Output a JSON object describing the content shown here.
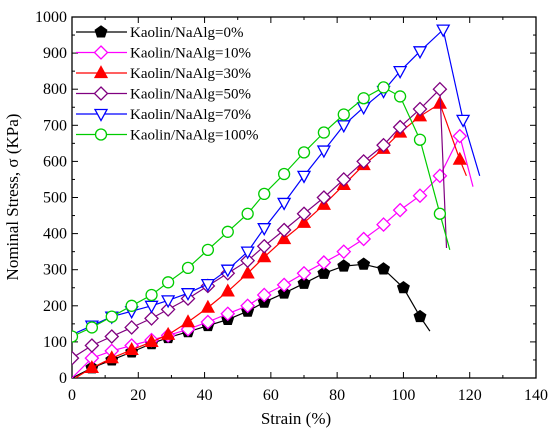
{
  "chart_data": {
    "type": "line",
    "xlabel": "Strain (%)",
    "ylabel": "Nominal Stress, σ (KPa)",
    "xlim": [
      0,
      140
    ],
    "ylim": [
      0,
      1000
    ],
    "xticks": [
      0,
      20,
      40,
      60,
      80,
      100,
      120,
      140
    ],
    "yticks": [
      0,
      100,
      200,
      300,
      400,
      500,
      600,
      700,
      800,
      900,
      1000
    ],
    "legend_position": "top-left",
    "grid": false,
    "series": [
      {
        "name": "Kaolin/NaAlg=0%",
        "color": "#000000",
        "marker": "pentagon",
        "filled": true,
        "x": [
          0,
          6,
          12,
          18,
          24,
          29,
          35,
          41,
          47,
          53,
          58,
          64,
          70,
          76,
          82,
          88,
          94,
          100,
          105,
          108
        ],
        "y": [
          0,
          28,
          50,
          72,
          95,
          112,
          128,
          145,
          162,
          185,
          210,
          235,
          262,
          290,
          310,
          315,
          302,
          250,
          170,
          130
        ],
        "marker_x": [
          6,
          12,
          18,
          24,
          29,
          35,
          41,
          47,
          53,
          58,
          64,
          70,
          76,
          82,
          88,
          94,
          100,
          105
        ],
        "marker_y": [
          28,
          50,
          72,
          95,
          112,
          128,
          145,
          162,
          185,
          210,
          235,
          262,
          290,
          310,
          315,
          302,
          250,
          170
        ]
      },
      {
        "name": "Kaolin/NaAlg=10%",
        "color": "#ff00ff",
        "marker": "diamond",
        "filled": false,
        "x": [
          0,
          6,
          12,
          18,
          24,
          29,
          35,
          41,
          47,
          53,
          58,
          64,
          70,
          76,
          82,
          88,
          94,
          99,
          105,
          111,
          117,
          121
        ],
        "y": [
          0,
          55,
          75,
          90,
          105,
          118,
          135,
          155,
          178,
          200,
          230,
          258,
          290,
          320,
          350,
          385,
          425,
          465,
          505,
          560,
          670,
          530
        ],
        "marker_x": [
          6,
          12,
          18,
          24,
          29,
          35,
          41,
          47,
          53,
          58,
          64,
          70,
          76,
          82,
          88,
          94,
          99,
          105,
          111,
          117
        ],
        "marker_y": [
          55,
          75,
          90,
          105,
          118,
          135,
          155,
          178,
          200,
          230,
          258,
          290,
          320,
          350,
          385,
          425,
          465,
          505,
          560,
          670
        ]
      },
      {
        "name": "Kaolin/NaAlg=30%",
        "color": "#ff0000",
        "marker": "triangle-up",
        "filled": true,
        "x": [
          1,
          6,
          12,
          18,
          24,
          29,
          35,
          41,
          47,
          53,
          58,
          64,
          70,
          76,
          82,
          88,
          94,
          99,
          105,
          111,
          117,
          119
        ],
        "y": [
          0,
          28,
          55,
          78,
          100,
          120,
          155,
          195,
          240,
          290,
          335,
          385,
          430,
          480,
          535,
          590,
          635,
          680,
          725,
          760,
          605,
          560
        ],
        "marker_x": [
          6,
          12,
          18,
          24,
          29,
          35,
          41,
          47,
          53,
          58,
          64,
          70,
          76,
          82,
          88,
          94,
          99,
          105,
          111,
          117
        ],
        "marker_y": [
          28,
          55,
          78,
          100,
          120,
          155,
          195,
          240,
          290,
          335,
          385,
          430,
          480,
          535,
          590,
          635,
          680,
          725,
          760,
          605
        ]
      },
      {
        "name": "Kaolin/NaAlg=50%",
        "color": "#800080",
        "marker": "diamond",
        "filled": false,
        "x": [
          0,
          6,
          12,
          18,
          24,
          29,
          35,
          41,
          47,
          53,
          58,
          64,
          70,
          76,
          82,
          88,
          94,
          99,
          105,
          111,
          113
        ],
        "y": [
          55,
          90,
          115,
          140,
          165,
          190,
          220,
          255,
          290,
          325,
          365,
          410,
          455,
          500,
          550,
          600,
          645,
          695,
          745,
          800,
          360
        ],
        "marker_x": [
          0,
          6,
          12,
          18,
          24,
          29,
          35,
          41,
          47,
          53,
          58,
          64,
          70,
          76,
          82,
          88,
          94,
          99,
          105,
          111
        ],
        "marker_y": [
          55,
          90,
          115,
          140,
          165,
          190,
          220,
          255,
          290,
          325,
          365,
          410,
          455,
          500,
          550,
          600,
          645,
          695,
          745,
          800
        ]
      },
      {
        "name": "Kaolin/NaAlg=70%",
        "color": "#0000ff",
        "marker": "triangle-down",
        "filled": false,
        "x": [
          0,
          6,
          12,
          18,
          24,
          29,
          35,
          41,
          47,
          53,
          58,
          64,
          70,
          76,
          82,
          88,
          94,
          99,
          105,
          112,
          118,
          123
        ],
        "y": [
          120,
          145,
          170,
          185,
          200,
          215,
          235,
          260,
          300,
          350,
          415,
          485,
          560,
          630,
          700,
          750,
          795,
          850,
          905,
          965,
          715,
          560
        ],
        "marker_x": [
          6,
          12,
          18,
          24,
          29,
          35,
          41,
          47,
          53,
          58,
          64,
          70,
          76,
          82,
          88,
          94,
          99,
          105,
          112,
          118
        ],
        "marker_y": [
          145,
          170,
          185,
          200,
          215,
          235,
          260,
          300,
          350,
          415,
          485,
          560,
          630,
          700,
          750,
          795,
          850,
          905,
          965,
          715
        ]
      },
      {
        "name": "Kaolin/NaAlg=100%",
        "color": "#00cc00",
        "marker": "circle",
        "filled": false,
        "x": [
          0,
          6,
          12,
          18,
          24,
          29,
          35,
          41,
          47,
          53,
          58,
          64,
          70,
          76,
          82,
          88,
          94,
          99,
          105,
          111,
          114
        ],
        "y": [
          115,
          140,
          170,
          200,
          230,
          265,
          305,
          355,
          405,
          455,
          510,
          565,
          625,
          680,
          730,
          775,
          805,
          780,
          660,
          455,
          355
        ],
        "marker_x": [
          0,
          6,
          12,
          18,
          24,
          29,
          35,
          41,
          47,
          53,
          58,
          64,
          70,
          76,
          82,
          88,
          94,
          99,
          105,
          111
        ],
        "marker_y": [
          115,
          140,
          170,
          200,
          230,
          265,
          305,
          355,
          405,
          455,
          510,
          565,
          625,
          680,
          730,
          775,
          805,
          780,
          660,
          455
        ]
      }
    ]
  }
}
